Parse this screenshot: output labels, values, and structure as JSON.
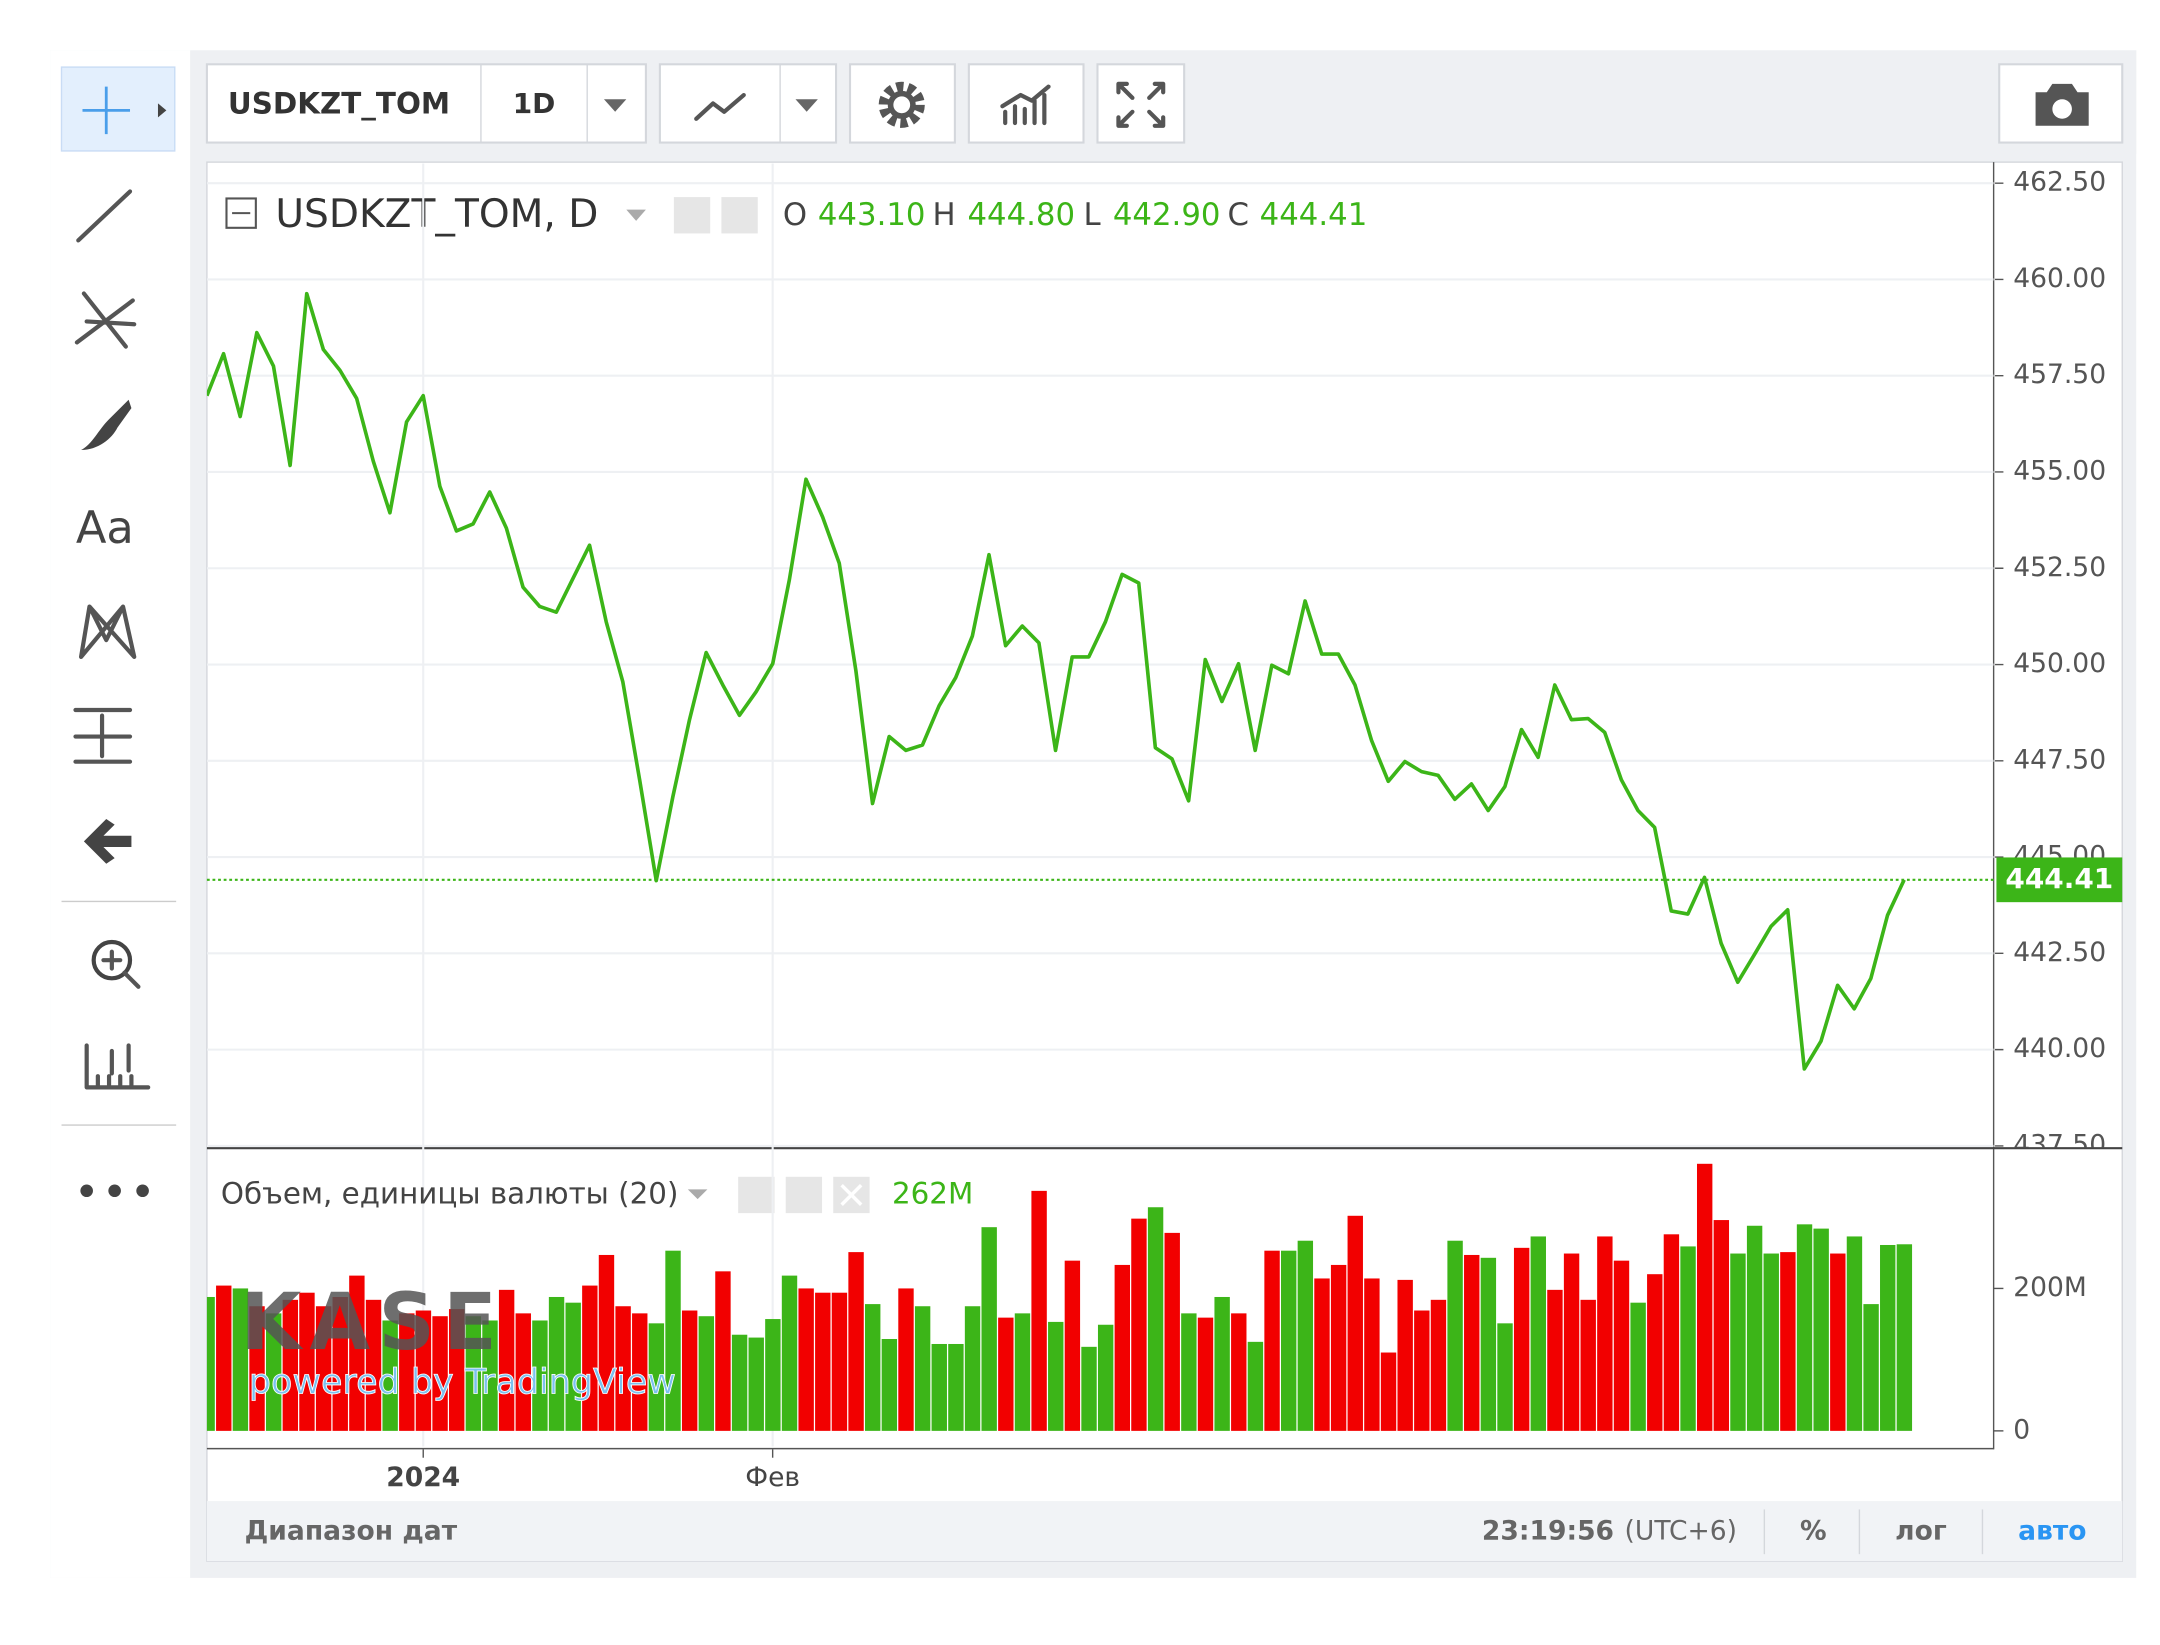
{
  "toolbar": {
    "symbol": "USDKZT_TOM",
    "interval": "1D"
  },
  "side_toolbar": {
    "text_tool": "Aa"
  },
  "watermark": {
    "logo": "KASE",
    "powered": "powered by TradingView"
  },
  "footer": {
    "date_range": "Диапазон дат",
    "time": "23:19:56",
    "timezone": "(UTC+6)",
    "percent": "%",
    "log": "лог",
    "auto": "авто"
  },
  "chart_data": [
    {
      "type": "line",
      "title": "USDKZT_TOM, D",
      "ohlc_labels": [
        "O",
        "H",
        "L",
        "C"
      ],
      "ohlc_values": [
        "443.10",
        "444.80",
        "442.90",
        "444.41"
      ],
      "color": "#3cb518",
      "categories": [
        null,
        null,
        null,
        null,
        null,
        null,
        null,
        null,
        null,
        null,
        null,
        null,
        null,
        "2024",
        null,
        null,
        null,
        null,
        null,
        null,
        null,
        null,
        null,
        null,
        null,
        null,
        null,
        null,
        null,
        null,
        null,
        null,
        null,
        null,
        "Фев",
        null,
        null,
        null,
        null,
        null,
        null,
        null,
        null,
        null,
        null,
        null,
        null,
        null,
        null,
        null,
        null,
        null,
        null,
        null,
        null,
        null,
        null,
        null,
        null,
        null,
        null,
        null,
        null,
        null,
        null,
        null,
        null,
        null,
        null,
        null,
        null,
        null,
        null,
        null,
        null,
        null,
        null,
        null,
        null,
        null,
        null,
        null,
        null,
        null,
        null,
        null,
        null,
        null,
        null,
        null,
        null,
        null,
        null,
        null,
        null,
        null,
        null,
        null,
        null,
        null,
        null,
        null,
        null
      ],
      "values": [
        456.98,
        458.07,
        456.44,
        458.62,
        457.75,
        455.17,
        459.63,
        458.18,
        457.64,
        456.91,
        455.28,
        453.94,
        456.3,
        456.98,
        454.63,
        453.47,
        453.65,
        454.48,
        453.54,
        452.01,
        451.51,
        451.36,
        452.23,
        453.1,
        451.11,
        449.55,
        447.01,
        444.39,
        446.57,
        448.57,
        450.31,
        449.47,
        448.68,
        449.29,
        450.02,
        452.2,
        454.81,
        453.83,
        452.63,
        449.84,
        446.39,
        448.13,
        447.77,
        447.91,
        448.93,
        449.66,
        450.74,
        452.85,
        450.49,
        451.0,
        450.56,
        447.77,
        450.2,
        450.2,
        451.11,
        452.34,
        452.12,
        447.84,
        447.55,
        446.46,
        450.13,
        449.04,
        450.02,
        447.77,
        449.98,
        449.76,
        451.65,
        450.27,
        450.27,
        449.47,
        448.02,
        446.97,
        447.48,
        447.22,
        447.12,
        446.5,
        446.9,
        446.21,
        446.83,
        448.31,
        447.59,
        449.47,
        448.57,
        448.6,
        448.24,
        447.01,
        446.21,
        445.77,
        443.6,
        443.52,
        444.47,
        442.76,
        441.75,
        442.47,
        443.2,
        443.63,
        439.5,
        440.22,
        441.67,
        441.06,
        441.85,
        443.49,
        444.41
      ],
      "ylim": [
        437.46,
        463.01
      ],
      "yticks": [
        {
          "value": 437.5,
          "label": "437.50"
        },
        {
          "value": 440,
          "label": "440.00"
        },
        {
          "value": 442.5,
          "label": "442.50"
        },
        {
          "value": 445,
          "label": "445.00"
        },
        {
          "value": 447.5,
          "label": "447.50"
        },
        {
          "value": 450,
          "label": "450.00"
        },
        {
          "value": 452.5,
          "label": "452.50"
        },
        {
          "value": 455,
          "label": "455.00"
        },
        {
          "value": 457.5,
          "label": "457.50"
        },
        {
          "value": 460,
          "label": "460.00"
        },
        {
          "value": 462.5,
          "label": "462.50"
        }
      ],
      "grid": true,
      "last_price_line": true
    },
    {
      "type": "bar",
      "title": "Объем, единицы валюты (20)",
      "last_value_label": "262M",
      "values": [
        188,
        204,
        200,
        175,
        165,
        184,
        194,
        175,
        188,
        218,
        184,
        155,
        165,
        169,
        161,
        171,
        161,
        155,
        198,
        165,
        155,
        188,
        180,
        204,
        247,
        175,
        165,
        151,
        253,
        169,
        161,
        224,
        135,
        131,
        157,
        218,
        200,
        194,
        194,
        251,
        178,
        129,
        200,
        175,
        122,
        122,
        175,
        286,
        159,
        165,
        337,
        153,
        239,
        118,
        149,
        233,
        298,
        314,
        278,
        165,
        159,
        188,
        165,
        125,
        253,
        253,
        267,
        214,
        233,
        302,
        214,
        110,
        212,
        169,
        184,
        267,
        247,
        243,
        151,
        257,
        273,
        198,
        249,
        184,
        273,
        239,
        180,
        220,
        276,
        259,
        375,
        296,
        249,
        288,
        249,
        251,
        290,
        284,
        249,
        273,
        178,
        261,
        262
      ],
      "colors": [
        "#3cb518",
        "#f20000",
        "#3cb518",
        "#f20000",
        "#3cb518",
        "#f20000",
        "#f20000",
        "#f20000",
        "#f20000",
        "#f20000",
        "#f20000",
        "#3cb518",
        "#f20000",
        "#f20000",
        "#f20000",
        "#f20000",
        "#3cb518",
        "#3cb518",
        "#f20000",
        "#f20000",
        "#3cb518",
        "#3cb518",
        "#3cb518",
        "#f20000",
        "#f20000",
        "#f20000",
        "#f20000",
        "#3cb518",
        "#3cb518",
        "#f20000",
        "#3cb518",
        "#f20000",
        "#3cb518",
        "#3cb518",
        "#3cb518",
        "#3cb518",
        "#f20000",
        "#f20000",
        "#f20000",
        "#f20000",
        "#3cb518",
        "#3cb518",
        "#f20000",
        "#3cb518",
        "#3cb518",
        "#3cb518",
        "#3cb518",
        "#3cb518",
        "#f20000",
        "#3cb518",
        "#f20000",
        "#3cb518",
        "#f20000",
        "#3cb518",
        "#3cb518",
        "#f20000",
        "#f20000",
        "#3cb518",
        "#f20000",
        "#3cb518",
        "#f20000",
        "#3cb518",
        "#f20000",
        "#3cb518",
        "#f20000",
        "#3cb518",
        "#3cb518",
        "#f20000",
        "#f20000",
        "#f20000",
        "#f20000",
        "#f20000",
        "#f20000",
        "#f20000",
        "#f20000",
        "#3cb518",
        "#f20000",
        "#3cb518",
        "#3cb518",
        "#f20000",
        "#3cb518",
        "#f20000",
        "#f20000",
        "#f20000",
        "#f20000",
        "#f20000",
        "#3cb518",
        "#f20000",
        "#f20000",
        "#3cb518",
        "#f20000",
        "#f20000",
        "#3cb518",
        "#3cb518",
        "#3cb518",
        "#f20000",
        "#3cb518",
        "#3cb518",
        "#f20000",
        "#3cb518",
        "#3cb518",
        "#3cb518",
        "#3cb518"
      ],
      "ylim": [
        -22,
        396
      ],
      "yticks": [
        0,
        {
          "value": 200,
          "label": "200M"
        }
      ]
    }
  ]
}
